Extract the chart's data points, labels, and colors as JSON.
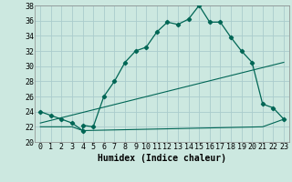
{
  "title": "",
  "xlabel": "Humidex (Indice chaleur)",
  "xlim": [
    -0.5,
    23.5
  ],
  "ylim": [
    20,
    38
  ],
  "xticks": [
    0,
    1,
    2,
    3,
    4,
    5,
    6,
    7,
    8,
    9,
    10,
    11,
    12,
    13,
    14,
    15,
    16,
    17,
    18,
    19,
    20,
    21,
    22,
    23
  ],
  "yticks": [
    20,
    22,
    24,
    26,
    28,
    30,
    32,
    34,
    36,
    38
  ],
  "bg_color": "#cce8e0",
  "grid_color": "#aacccc",
  "line_color": "#006655",
  "line1_x": [
    0,
    1,
    2,
    3,
    4,
    4,
    5,
    6,
    7,
    8,
    9,
    10,
    11,
    12,
    13,
    14,
    15,
    16,
    17,
    18,
    19,
    20,
    21,
    22,
    23
  ],
  "line1_y": [
    24,
    23.5,
    23,
    22.5,
    21.5,
    22.2,
    22,
    26,
    28,
    30.5,
    32,
    32.5,
    34.5,
    35.8,
    35.5,
    36.2,
    38,
    35.8,
    35.8,
    33.8,
    32,
    30.5,
    25,
    24.5,
    23
  ],
  "line2_x": [
    0,
    3,
    4,
    21,
    22,
    23
  ],
  "line2_y": [
    22,
    22,
    21.5,
    22,
    22.5,
    23
  ],
  "line3_x": [
    0,
    23
  ],
  "line3_y": [
    22.5,
    30.5
  ]
}
